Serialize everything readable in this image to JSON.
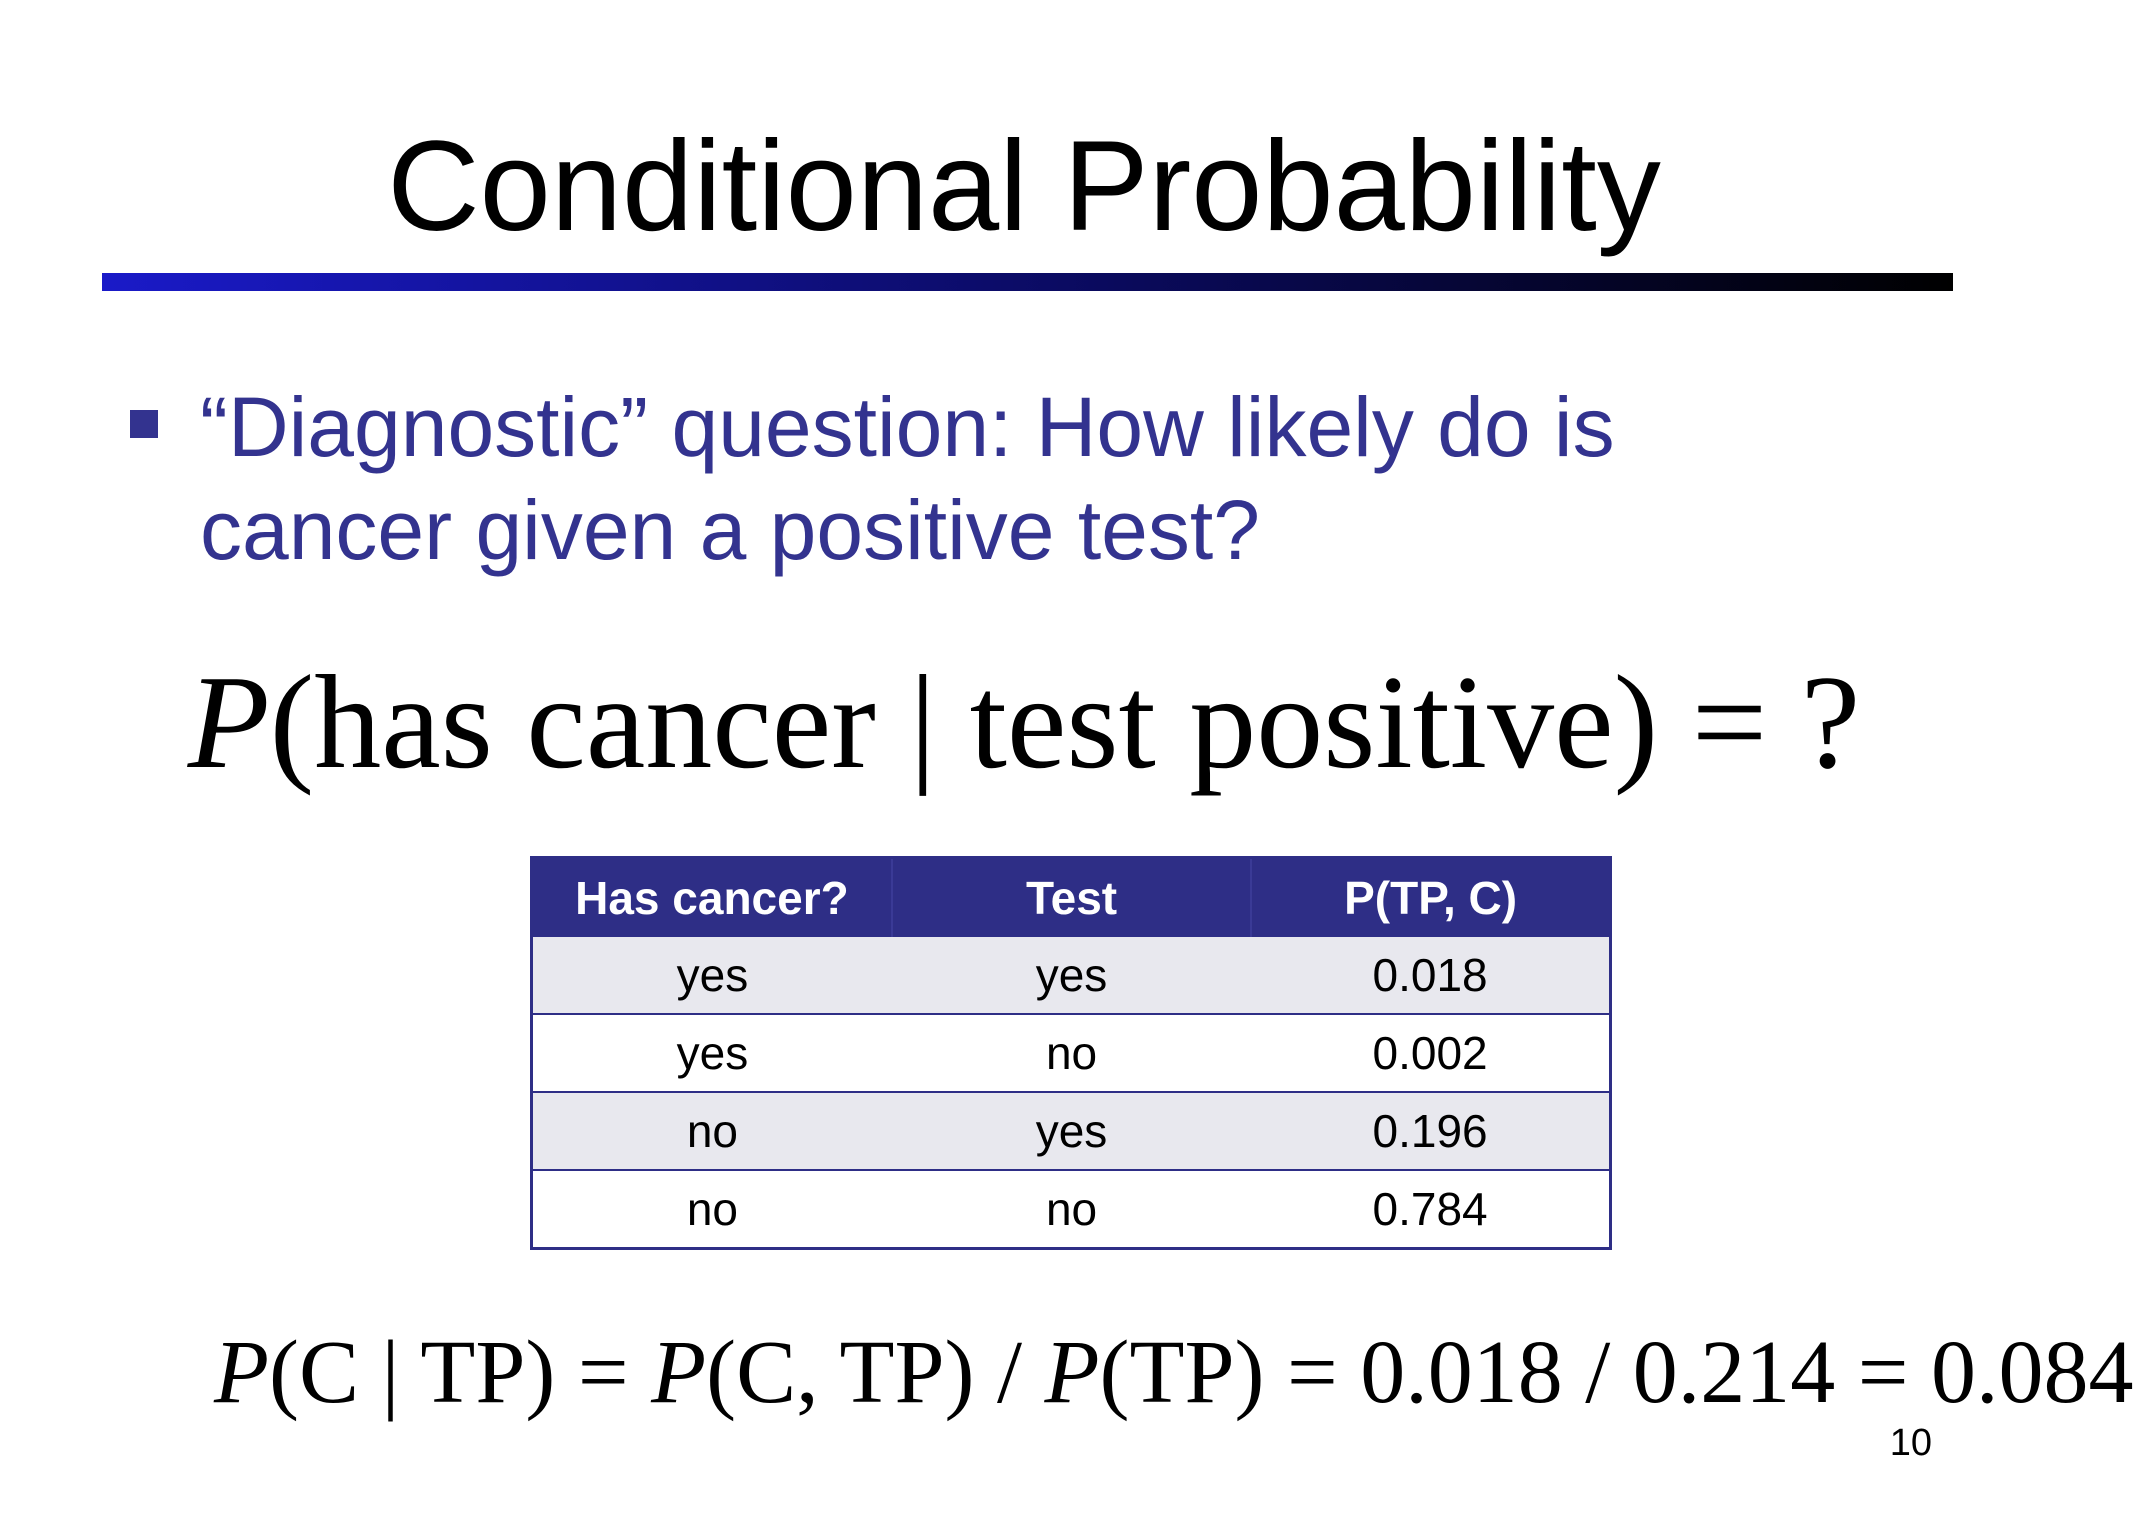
{
  "slide": {
    "title": "Conditional Probability",
    "bullet": "“Diagnostic” question: How likely do is cancer given a positive test?",
    "formula_main": {
      "p": "P",
      "body": "(has cancer | test positive) = ?"
    },
    "table": {
      "headers": [
        "Has cancer?",
        "Test",
        "P(TP, C)"
      ],
      "rows": [
        [
          "yes",
          "yes",
          "0.018"
        ],
        [
          "yes",
          "no",
          "0.002"
        ],
        [
          "no",
          "yes",
          "0.196"
        ],
        [
          "no",
          "no",
          "0.784"
        ]
      ]
    },
    "formula_bottom": {
      "p1": "P",
      "part1": "(C | TP) = ",
      "p2": "P",
      "part2": "(C, TP) / ",
      "p3": "P",
      "part3": "(TP) = 0.018 / 0.214 = 0.084"
    },
    "page_number": "10"
  },
  "colors": {
    "bullet_text": "#33338f",
    "table_header": "#2e2e86",
    "table_shade": "#e8e8ee"
  }
}
